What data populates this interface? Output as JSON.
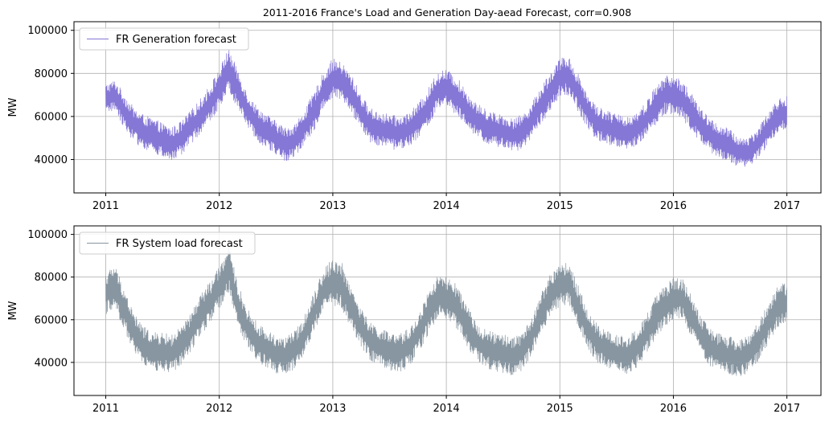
{
  "figure": {
    "title": "2011-2016 France's Load and Generation Day-aead Forecast, corr=0.908"
  },
  "chart_data": [
    {
      "type": "line",
      "title": "2011-2016 France's Load and Generation Day-aead Forecast, corr=0.908",
      "xlabel": "",
      "ylabel": "MW",
      "xlim": [
        2010.72,
        2017.3
      ],
      "ylim": [
        24500,
        104000
      ],
      "x_ticks": [
        2011,
        2012,
        2013,
        2014,
        2015,
        2016,
        2017
      ],
      "x_tick_labels": [
        "2011",
        "2012",
        "2013",
        "2014",
        "2015",
        "2016",
        "2017"
      ],
      "y_ticks": [
        40000,
        60000,
        80000,
        100000
      ],
      "y_tick_labels": [
        "40000",
        "60000",
        "80000",
        "100000"
      ],
      "grid": true,
      "legend_position": "top-left",
      "series": [
        {
          "name": "FR Generation forecast",
          "color": "#8577d6",
          "x": [
            2011.0,
            2011.08,
            2011.17,
            2011.25,
            2011.33,
            2011.42,
            2011.5,
            2011.58,
            2011.67,
            2011.75,
            2011.83,
            2011.92,
            2012.0,
            2012.08,
            2012.17,
            2012.25,
            2012.33,
            2012.42,
            2012.5,
            2012.58,
            2012.67,
            2012.75,
            2012.83,
            2012.92,
            2013.0,
            2013.08,
            2013.17,
            2013.25,
            2013.33,
            2013.42,
            2013.5,
            2013.58,
            2013.67,
            2013.75,
            2013.83,
            2013.92,
            2014.0,
            2014.08,
            2014.17,
            2014.25,
            2014.33,
            2014.42,
            2014.5,
            2014.58,
            2014.67,
            2014.75,
            2014.83,
            2014.92,
            2015.0,
            2015.08,
            2015.17,
            2015.25,
            2015.33,
            2015.42,
            2015.5,
            2015.58,
            2015.67,
            2015.75,
            2015.83,
            2015.92,
            2016.0,
            2016.08,
            2016.17,
            2016.25,
            2016.33,
            2016.42,
            2016.5,
            2016.58,
            2016.67,
            2016.75,
            2016.83,
            2016.92,
            2017.0
          ],
          "y": [
            68000,
            70000,
            62000,
            56000,
            53000,
            51000,
            49000,
            47000,
            50000,
            55000,
            60000,
            66000,
            73000,
            82000,
            72000,
            63000,
            57000,
            53000,
            50000,
            47000,
            49000,
            55000,
            62000,
            72000,
            78000,
            76000,
            70000,
            62000,
            56000,
            54000,
            53000,
            52000,
            54000,
            58000,
            63000,
            72000,
            73000,
            70000,
            64000,
            59000,
            56000,
            54000,
            53000,
            51000,
            53000,
            58000,
            65000,
            72000,
            78000,
            79000,
            70000,
            62000,
            57000,
            55000,
            53000,
            52000,
            54000,
            58000,
            64000,
            70000,
            70000,
            68000,
            61000,
            55000,
            51000,
            48000,
            46000,
            43000,
            44000,
            48000,
            54000,
            60000,
            62000
          ],
          "band": [
            7000,
            7000,
            8000,
            8000,
            8000,
            8000,
            8000,
            8000,
            8000,
            8000,
            8000,
            9000,
            9000,
            10000,
            9000,
            8000,
            8000,
            8000,
            8000,
            8000,
            8000,
            8000,
            9000,
            9000,
            9000,
            9000,
            9000,
            8000,
            8000,
            8000,
            8000,
            8000,
            8000,
            8000,
            9000,
            9000,
            9000,
            9000,
            9000,
            8000,
            8000,
            8000,
            8000,
            8000,
            8000,
            8000,
            9000,
            9000,
            9000,
            9000,
            9000,
            8000,
            8000,
            8000,
            8000,
            8000,
            8000,
            8000,
            9000,
            9000,
            9000,
            9000,
            9000,
            8000,
            8000,
            8000,
            8000,
            7000,
            7000,
            7000,
            8000,
            8000,
            8000
          ]
        }
      ]
    },
    {
      "type": "line",
      "title": "",
      "xlabel": "",
      "ylabel": "MW",
      "xlim": [
        2010.72,
        2017.3
      ],
      "ylim": [
        24500,
        104000
      ],
      "x_ticks": [
        2011,
        2012,
        2013,
        2014,
        2015,
        2016,
        2017
      ],
      "x_tick_labels": [
        "2011",
        "2012",
        "2013",
        "2014",
        "2015",
        "2016",
        "2017"
      ],
      "y_ticks": [
        40000,
        60000,
        80000,
        100000
      ],
      "y_tick_labels": [
        "40000",
        "60000",
        "80000",
        "100000"
      ],
      "grid": true,
      "legend_position": "top-left",
      "series": [
        {
          "name": "FR System load forecast",
          "color": "#8896a1",
          "x": [
            2011.0,
            2011.08,
            2011.17,
            2011.25,
            2011.33,
            2011.42,
            2011.5,
            2011.58,
            2011.67,
            2011.75,
            2011.83,
            2011.92,
            2012.0,
            2012.08,
            2012.17,
            2012.25,
            2012.33,
            2012.42,
            2012.5,
            2012.58,
            2012.67,
            2012.75,
            2012.83,
            2012.92,
            2013.0,
            2013.08,
            2013.17,
            2013.25,
            2013.33,
            2013.42,
            2013.5,
            2013.58,
            2013.67,
            2013.75,
            2013.83,
            2013.92,
            2014.0,
            2014.08,
            2014.17,
            2014.25,
            2014.33,
            2014.42,
            2014.5,
            2014.58,
            2014.67,
            2014.75,
            2014.83,
            2014.92,
            2015.0,
            2015.08,
            2015.17,
            2015.25,
            2015.33,
            2015.42,
            2015.5,
            2015.58,
            2015.67,
            2015.75,
            2015.83,
            2015.92,
            2016.0,
            2016.08,
            2016.17,
            2016.25,
            2016.33,
            2016.42,
            2016.5,
            2016.58,
            2016.67,
            2016.75,
            2016.83,
            2016.92,
            2017.0
          ],
          "y": [
            72000,
            76000,
            64000,
            54000,
            48000,
            45000,
            45000,
            44000,
            48000,
            54000,
            62000,
            68000,
            75000,
            84000,
            66000,
            56000,
            50000,
            46000,
            44000,
            43000,
            46000,
            53000,
            63000,
            74000,
            78000,
            76000,
            65000,
            56000,
            50000,
            47000,
            45000,
            44000,
            47000,
            53000,
            62000,
            71000,
            70000,
            67000,
            58000,
            51000,
            47000,
            45000,
            44000,
            43000,
            45000,
            52000,
            62000,
            72000,
            76000,
            77000,
            65000,
            55000,
            49000,
            46000,
            44000,
            43000,
            46000,
            52000,
            60000,
            66000,
            70000,
            70000,
            60000,
            52000,
            47000,
            44000,
            43000,
            42000,
            44000,
            50000,
            58000,
            66000,
            68000
          ],
          "band": [
            10000,
            10000,
            10000,
            9000,
            9000,
            9000,
            9000,
            9000,
            9000,
            9000,
            10000,
            10000,
            10000,
            11000,
            10000,
            9000,
            9000,
            9000,
            9000,
            9000,
            9000,
            9000,
            10000,
            10000,
            11000,
            11000,
            10000,
            9000,
            9000,
            9000,
            9000,
            9000,
            9000,
            9000,
            10000,
            10000,
            10000,
            10000,
            10000,
            9000,
            9000,
            9000,
            9000,
            9000,
            9000,
            9000,
            10000,
            10000,
            10000,
            10000,
            10000,
            9000,
            9000,
            9000,
            9000,
            9000,
            9000,
            9000,
            10000,
            10000,
            10000,
            10000,
            10000,
            9000,
            9000,
            9000,
            9000,
            9000,
            9000,
            9000,
            10000,
            10000,
            10000
          ]
        }
      ]
    }
  ]
}
